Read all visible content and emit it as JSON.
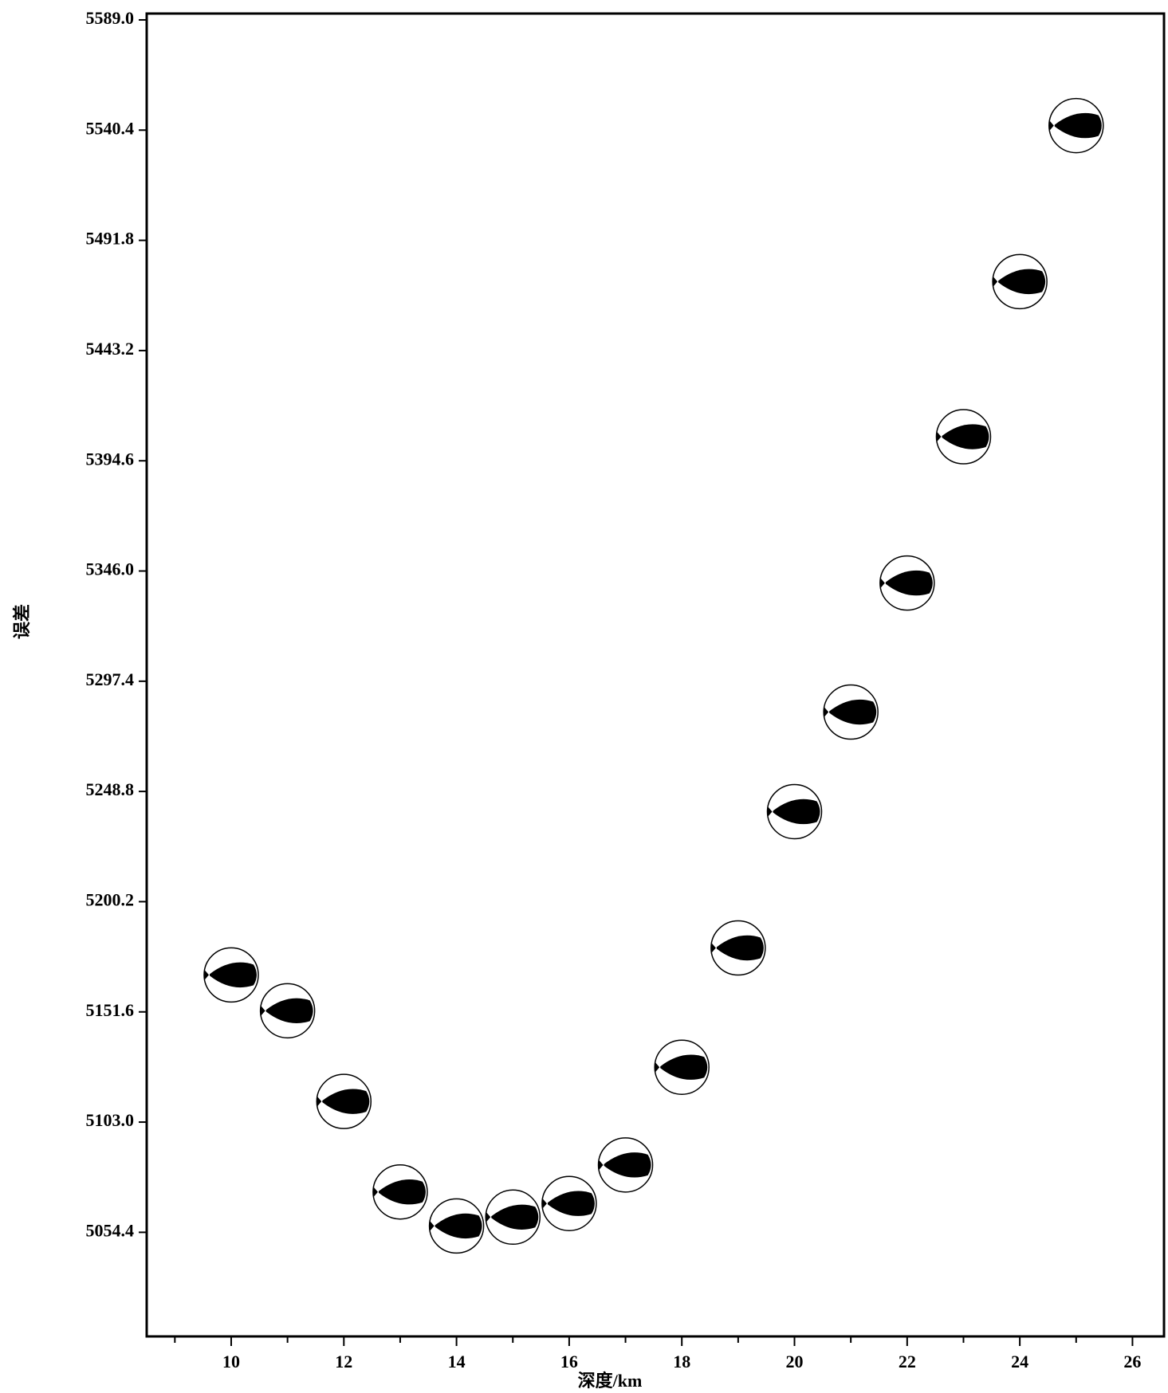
{
  "chart_data": {
    "type": "scatter",
    "x_label": "深度/km",
    "y_label": "误差",
    "x": [
      10,
      11,
      12,
      13,
      14,
      15,
      16,
      17,
      18,
      19,
      20,
      21,
      22,
      23,
      24,
      25
    ],
    "series": [
      {
        "color": "#000000",
        "values": [
          5167.9,
          5152.1,
          5112.1,
          5072.2,
          5057.2,
          5061.1,
          5067.1,
          5084.1,
          5127.2,
          5179.8,
          5239.9,
          5283.8,
          5340.7,
          5405.2,
          5473.6,
          5542.4
        ]
      }
    ],
    "xlim": [
      8.5,
      26.56
    ],
    "xticks": [
      10,
      12,
      14,
      16,
      18,
      20,
      22,
      24,
      26
    ],
    "xminor_ticks": [
      9,
      11,
      13,
      15,
      17,
      19,
      21,
      23,
      25
    ],
    "ylim": [
      5008.5,
      5591.8
    ],
    "yticks": [
      5054.4,
      {
        "value": 5103.0,
        "label": "5103.0"
      },
      5151.6,
      5200.2,
      5248.8,
      5297.4,
      {
        "value": 5346.0,
        "label": "5346.0"
      },
      5394.6,
      5443.2,
      5491.8,
      5540.4,
      {
        "value": 5589.0,
        "label": "5589.0"
      }
    ],
    "grid": false
  }
}
